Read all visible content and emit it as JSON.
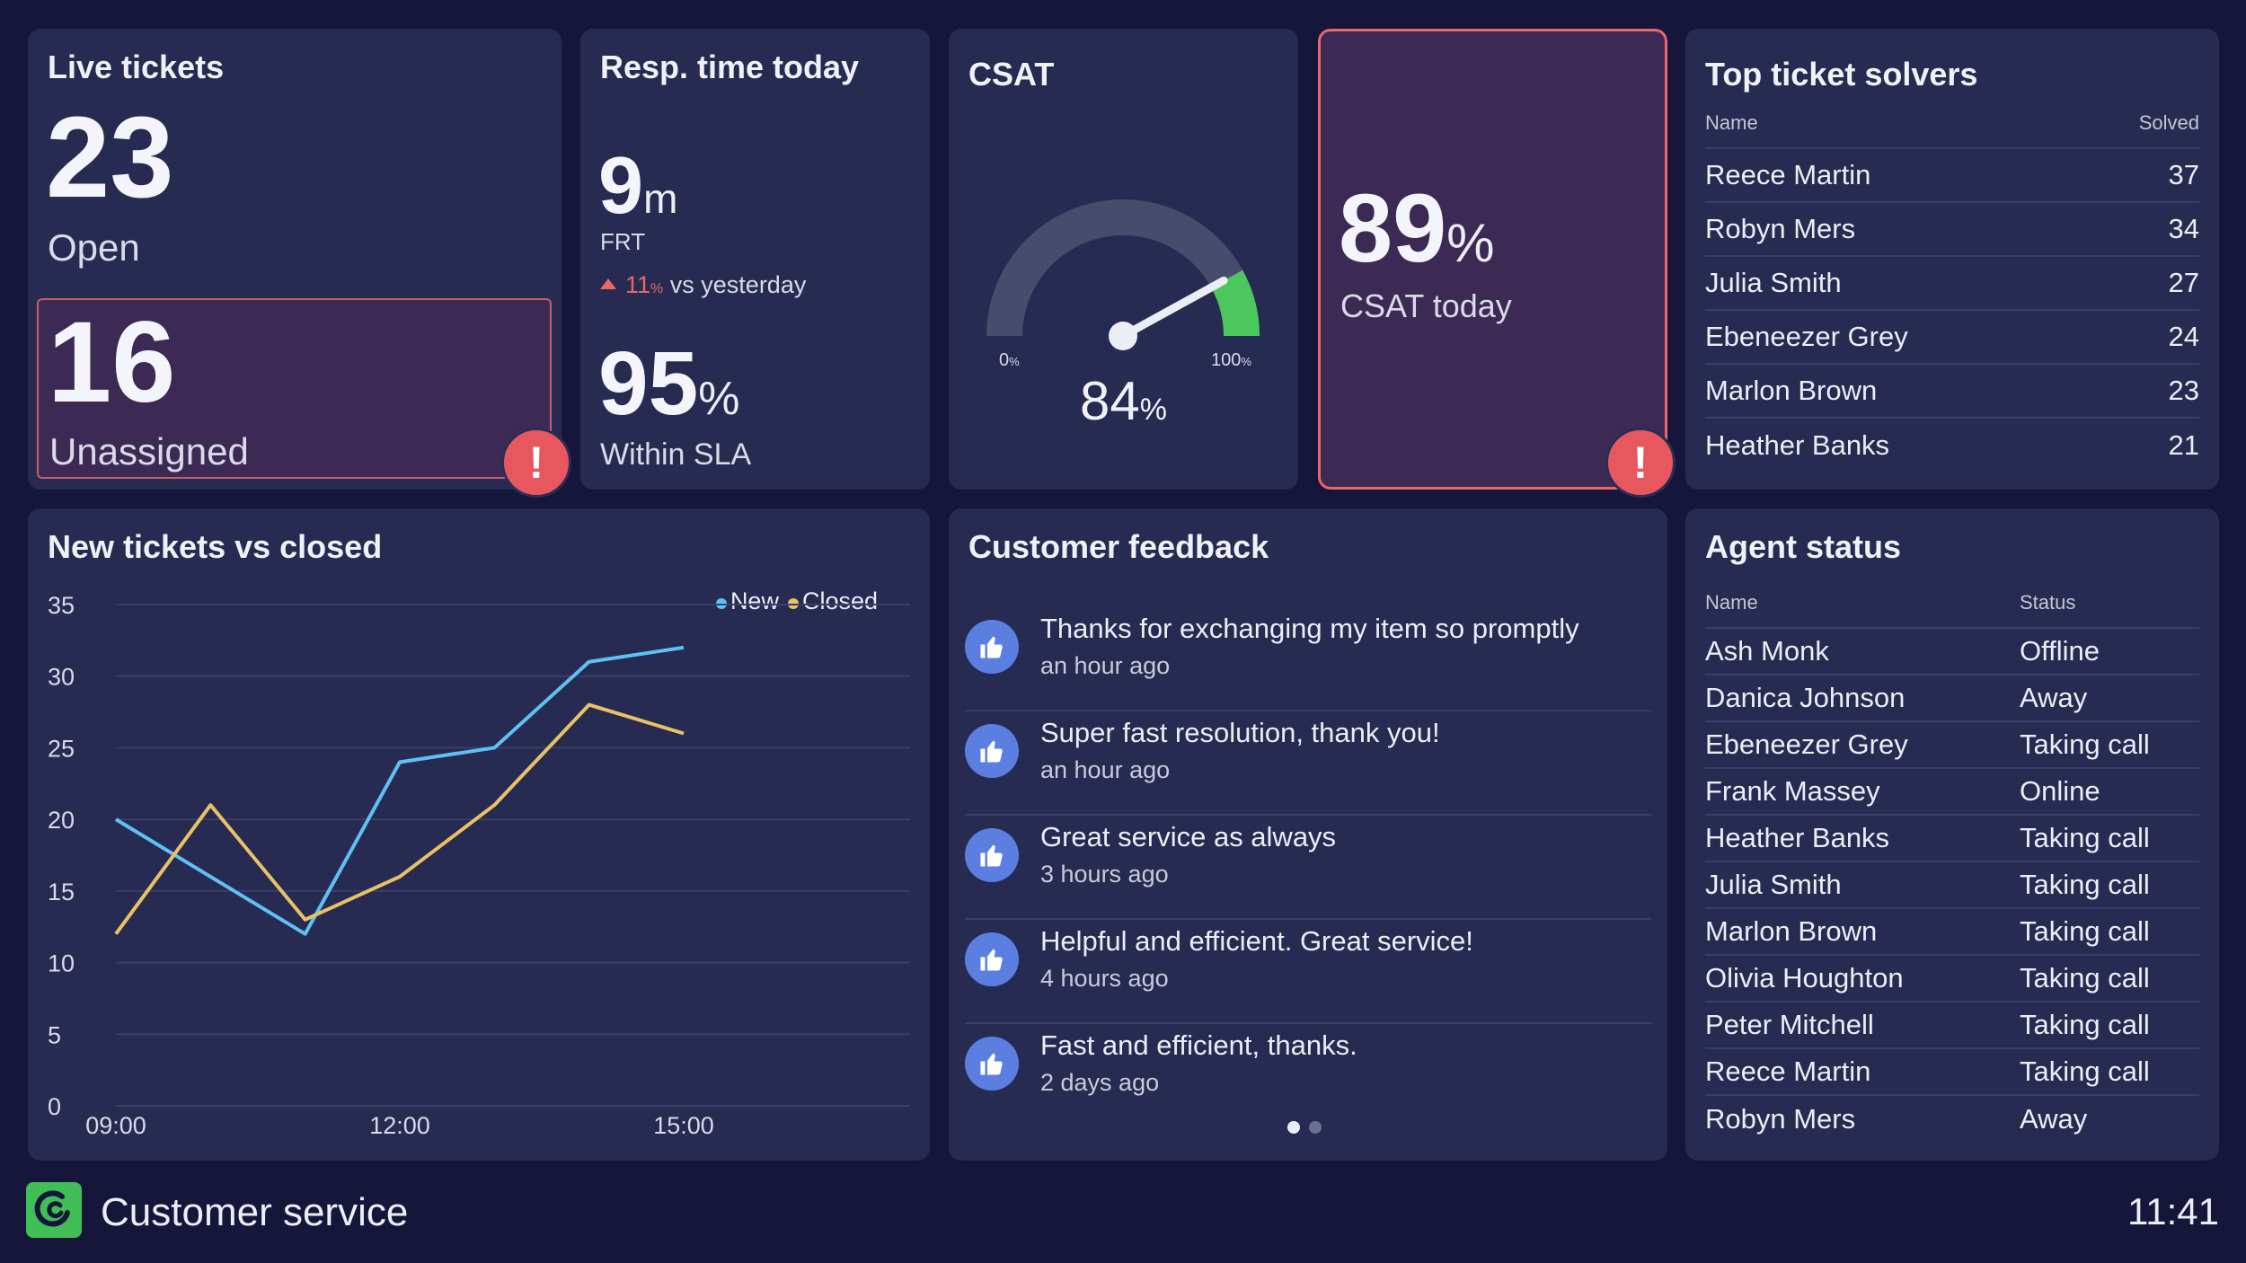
{
  "live": {
    "title": "Live tickets",
    "open_count": "23",
    "open_label": "Open",
    "unassigned_count": "16",
    "unassigned_label": "Unassigned",
    "alert": "!"
  },
  "resp": {
    "title": "Resp. time today",
    "frt_value": "9",
    "frt_unit": "m",
    "frt_label": "FRT",
    "change_value": "11",
    "change_unit": "%",
    "change_label": "vs yesterday",
    "sla_value": "95",
    "sla_unit": "%",
    "sla_label": "Within SLA"
  },
  "csat": {
    "title": "CSAT",
    "min_label": "0",
    "max_label": "100",
    "pct": "%",
    "value": "84",
    "value_fraction": 0.84
  },
  "csat_today": {
    "value": "89",
    "unit": "%",
    "label": "CSAT today",
    "alert": "!"
  },
  "solvers": {
    "title": "Top ticket solvers",
    "col_name": "Name",
    "col_solved": "Solved",
    "rows": [
      {
        "name": "Reece Martin",
        "solved": "37"
      },
      {
        "name": "Robyn Mers",
        "solved": "34"
      },
      {
        "name": "Julia Smith",
        "solved": "27"
      },
      {
        "name": "Ebeneezer Grey",
        "solved": "24"
      },
      {
        "name": "Marlon Brown",
        "solved": "23"
      },
      {
        "name": "Heather Banks",
        "solved": "21"
      }
    ]
  },
  "chart_data": {
    "type": "line",
    "title": "New tickets vs closed",
    "x": [
      "09:00",
      "10:00",
      "11:00",
      "12:00",
      "13:00",
      "14:00",
      "15:00"
    ],
    "x_ticks": [
      "09:00",
      "12:00",
      "15:00"
    ],
    "y_ticks": [
      0,
      5,
      10,
      15,
      20,
      25,
      30,
      35
    ],
    "ylim": [
      0,
      35
    ],
    "legend_placement": "top-right",
    "grid": true,
    "series": [
      {
        "name": "New",
        "color": "#5ec1f5",
        "values": [
          20,
          16,
          12,
          24,
          25,
          31,
          32
        ]
      },
      {
        "name": "Closed",
        "color": "#e8c265",
        "values": [
          12,
          21,
          13,
          16,
          21,
          28,
          26
        ]
      }
    ]
  },
  "feedback": {
    "title": "Customer feedback",
    "items": [
      {
        "text": "Thanks for exchanging my item so promptly",
        "time": "an hour ago"
      },
      {
        "text": "Super fast resolution, thank you!",
        "time": "an hour ago"
      },
      {
        "text": "Great service as always",
        "time": "3 hours ago"
      },
      {
        "text": "Helpful and efficient. Great service!",
        "time": "4 hours ago"
      },
      {
        "text": "Fast and efficient, thanks.",
        "time": "2 days ago"
      }
    ]
  },
  "agents": {
    "title": "Agent status",
    "col_name": "Name",
    "col_status": "Status",
    "rows": [
      {
        "name": "Ash Monk",
        "status": "Offline"
      },
      {
        "name": "Danica Johnson",
        "status": "Away"
      },
      {
        "name": "Ebeneezer Grey",
        "status": "Taking call"
      },
      {
        "name": "Frank Massey",
        "status": "Online"
      },
      {
        "name": "Heather Banks",
        "status": "Taking call"
      },
      {
        "name": "Julia Smith",
        "status": "Taking call"
      },
      {
        "name": "Marlon Brown",
        "status": "Taking call"
      },
      {
        "name": "Olivia Houghton",
        "status": "Taking call"
      },
      {
        "name": "Peter Mitchell",
        "status": "Taking call"
      },
      {
        "name": "Reece Martin",
        "status": "Taking call"
      },
      {
        "name": "Robyn Mers",
        "status": "Away"
      }
    ]
  },
  "footer": {
    "title": "Customer service",
    "clock": "11:41",
    "logo_icon": "geckoboard-logo-icon"
  },
  "colors": {
    "background": "#15163a",
    "card": "#272b52",
    "alert": "#e8565e",
    "highlight": "#3c2a55",
    "gauge_track": "#474b6c",
    "gauge_fill": "#4cc75d",
    "thumb": "#5b7fe0"
  }
}
